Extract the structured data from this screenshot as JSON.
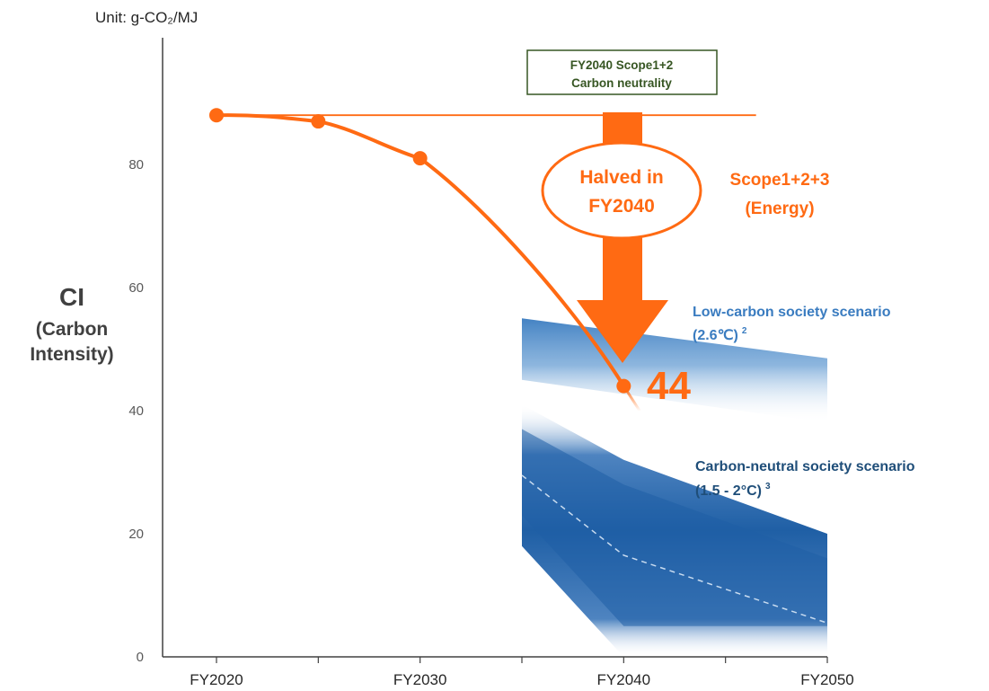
{
  "chart_data": {
    "type": "line",
    "ylabel_unit": "Unit: g-CO₂/MJ",
    "ylabel_main": "CI",
    "ylabel_sub1": "(Carbon",
    "ylabel_sub2": "Intensity)",
    "xlim": [
      2020,
      2050
    ],
    "ylim": [
      0,
      90
    ],
    "y_ticks": [
      0,
      20,
      40,
      60,
      80
    ],
    "x_ticks": [
      {
        "x": 2020,
        "label": "FY2020"
      },
      {
        "x": 2030,
        "label": "FY2030"
      },
      {
        "x": 2040,
        "label": "FY2040"
      },
      {
        "x": 2050,
        "label": "FY2050"
      }
    ],
    "x_minor_ticks": [
      2025,
      2035,
      2045
    ],
    "grid": false,
    "series": [
      {
        "name": "Scope1+2+3 (Energy)",
        "points": [
          {
            "x": 2020,
            "y": 88
          },
          {
            "x": 2025,
            "y": 87
          },
          {
            "x": 2030,
            "y": 81
          },
          {
            "x": 2040,
            "y": 44
          }
        ],
        "color": "#ff6a13"
      }
    ],
    "reference_line": {
      "y": 88,
      "x_from": 2020,
      "x_to": 2046.5,
      "color": "#ff6a13"
    },
    "bands": [
      {
        "name": "Low-carbon society scenario (2.6℃)",
        "x": [
          2035,
          2050
        ],
        "upper": [
          55,
          48.5
        ],
        "lower": [
          45,
          38
        ],
        "color": "#3a7cc0"
      },
      {
        "name": "Carbon-neutral society scenario (1.5 - 2°C)",
        "x": [
          2035,
          2040,
          2050
        ],
        "upper": [
          41,
          32,
          20
        ],
        "lower": [
          18,
          0,
          0
        ],
        "median": [
          29.5,
          16.5,
          5.5
        ],
        "color": "#1f5fa5"
      }
    ],
    "annotations": {
      "box_line1": "FY2040 Scope1+2",
      "box_line2": "Carbon neutrality",
      "halved_line1": "Halved in",
      "halved_line2": "FY2040",
      "scope_line1": "Scope1+2+3",
      "scope_line2": "(Energy)",
      "low_line1": "Low-carbon society scenario",
      "low_line2": "(2.6℃)",
      "low_sup": "2",
      "neutral_line1": "Carbon-neutral society scenario",
      "neutral_line2": "(1.5 - 2°C)",
      "neutral_sup": "3",
      "value_label": "44"
    },
    "colors": {
      "orange": "#ff6a13",
      "box_border": "#375623",
      "low_band": "#3a7cc0",
      "neutral_band": "#1f5fa5",
      "axis": "#404040"
    }
  }
}
